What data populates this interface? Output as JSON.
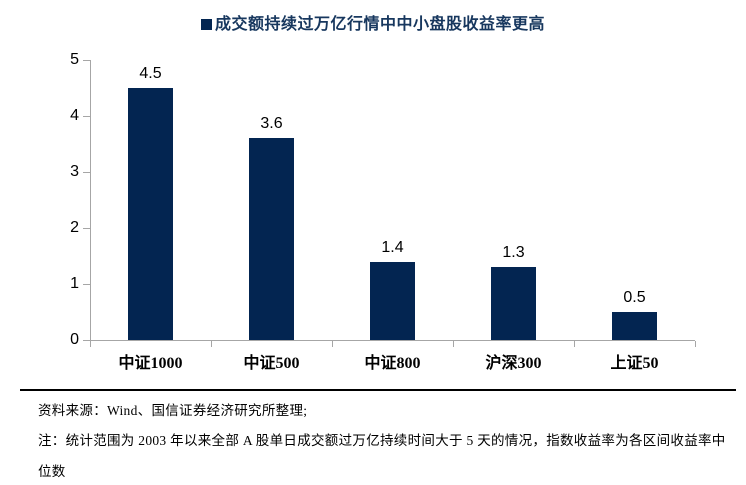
{
  "legend": {
    "marker_color": "#032551",
    "label": "成交额持续过万亿行情中中小盘股收益率更高"
  },
  "chart_data": {
    "type": "bar",
    "title": "成交额持续过万亿行情中中小盘股收益率更高",
    "categories": [
      "中证1000",
      "中证500",
      "中证800",
      "沪深300",
      "上证50"
    ],
    "values": [
      4.5,
      3.6,
      1.4,
      1.3,
      0.5
    ],
    "value_labels": [
      "4.5",
      "3.6",
      "1.4",
      "1.3",
      "0.5"
    ],
    "xlabel": "",
    "ylabel": "",
    "ylim": [
      0,
      5
    ],
    "yticks": [
      0,
      1,
      2,
      3,
      4,
      5
    ],
    "bar_color": "#032551",
    "axis_color": "#a6a6a6",
    "grid": false,
    "legend_position": "top-center"
  },
  "footer": {
    "source": "资料来源：Wind、国信证券经济研究所整理;",
    "note": "注：统计范围为 2003 年以来全部 A 股单日成交额过万亿持续时间大于 5 天的情况，指数收益率为各区间收益率中位数"
  }
}
